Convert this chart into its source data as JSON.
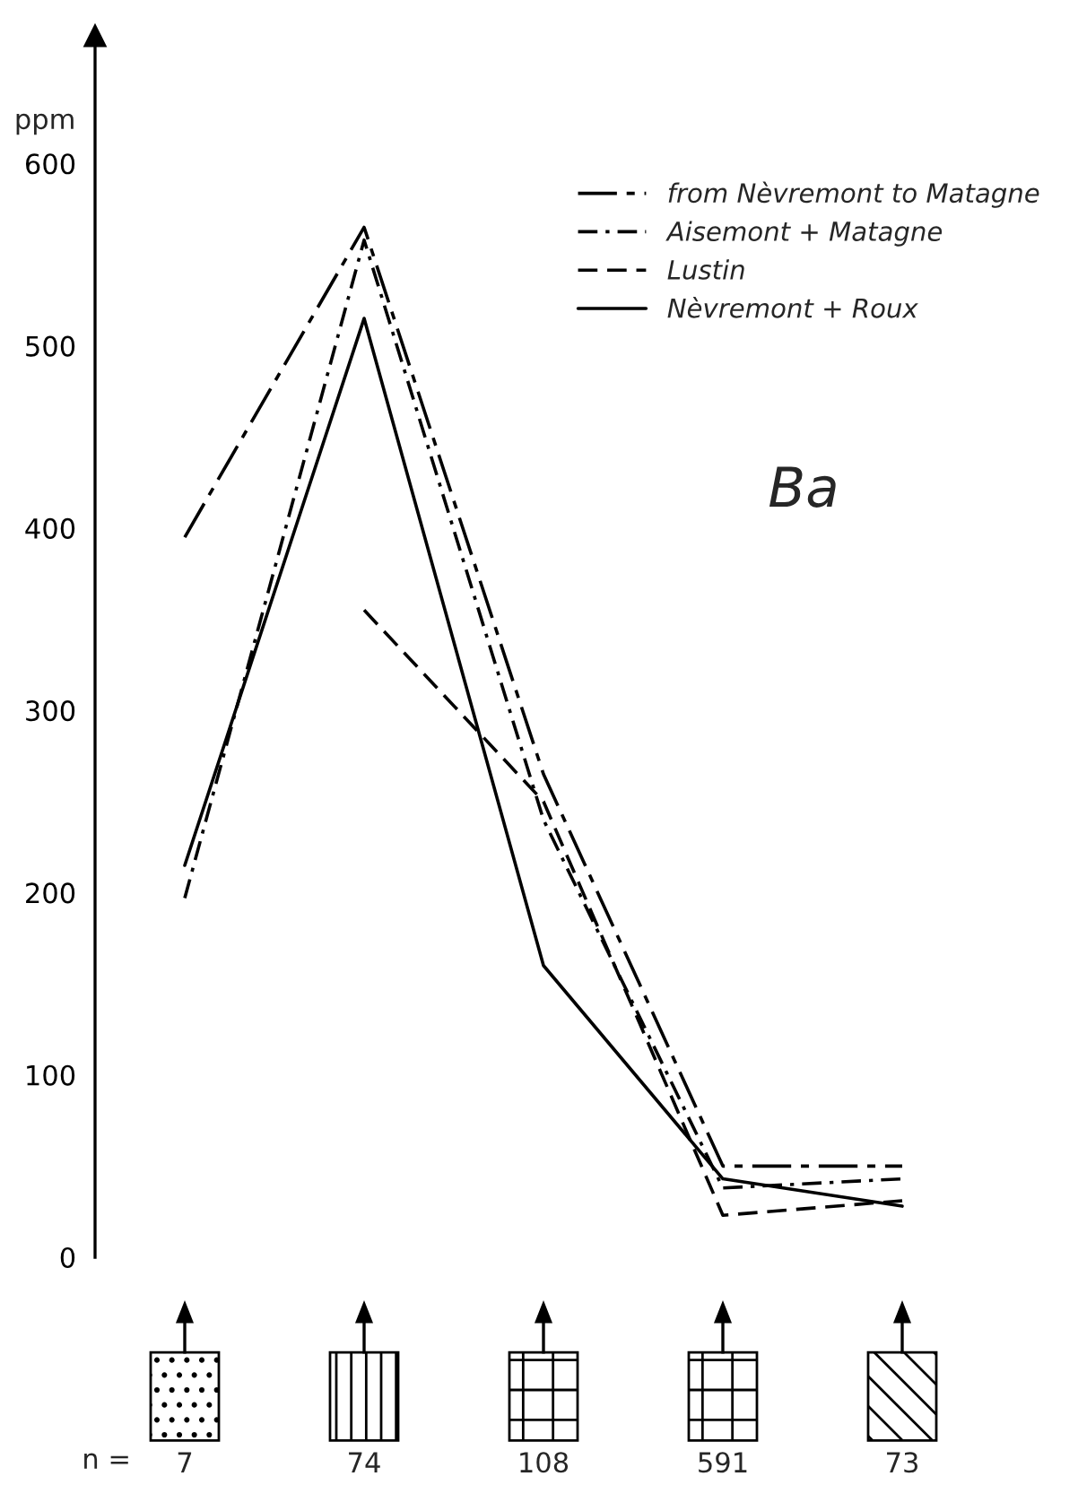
{
  "chart_data": {
    "type": "line",
    "ylabel": "ppm",
    "categories": [
      "7",
      "74",
      "108",
      "591",
      "73"
    ],
    "series": [
      {
        "name": "from Nèvremont to Matagne",
        "color": "#000000",
        "line_style": "long dashdot",
        "values": [
          395,
          565,
          265,
          50,
          50
        ]
      },
      {
        "name": "Aisemont + Matagne",
        "color": "#000000",
        "line_style": "dashdot",
        "values": [
          197,
          558,
          240,
          38,
          43
        ]
      },
      {
        "name": "Lustin",
        "color": "#000000",
        "line_style": "dashed",
        "values": [
          null,
          355,
          250,
          23,
          31
        ]
      },
      {
        "name": "Nèvremont + Roux",
        "color": "#000000",
        "line_style": "solid",
        "values": [
          215,
          515,
          160,
          43,
          28
        ]
      }
    ],
    "ylim": [
      0,
      670
    ],
    "yticks": [
      0,
      100,
      200,
      300,
      400,
      500,
      600
    ],
    "grid": false,
    "legend": "top right",
    "marker": "none",
    "annotations": [
      {
        "text": "Ba"
      },
      {
        "text": "n ="
      }
    ]
  }
}
